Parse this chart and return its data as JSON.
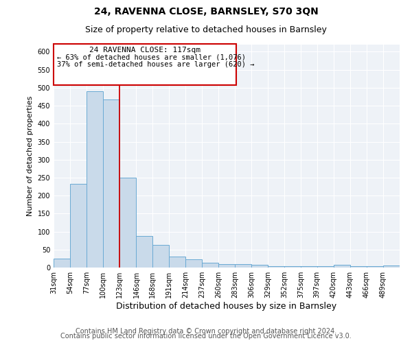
{
  "title_line1": "24, RAVENNA CLOSE, BARNSLEY, S70 3QN",
  "title_line2": "Size of property relative to detached houses in Barnsley",
  "xlabel": "Distribution of detached houses by size in Barnsley",
  "ylabel": "Number of detached properties",
  "footer_line1": "Contains HM Land Registry data © Crown copyright and database right 2024.",
  "footer_line2": "Contains public sector information licensed under the Open Government Licence v3.0.",
  "annotation_line1": "24 RAVENNA CLOSE: 117sqm",
  "annotation_line2": "← 63% of detached houses are smaller (1,076)",
  "annotation_line3": "37% of semi-detached houses are larger (620) →",
  "bar_color": "#c9daea",
  "bar_edge_color": "#6aaad4",
  "vline_color": "#cc0000",
  "background_color": "#eef2f7",
  "grid_color": "#ffffff",
  "bins": [
    31,
    54,
    77,
    100,
    123,
    146,
    168,
    191,
    214,
    237,
    260,
    283,
    306,
    329,
    352,
    375,
    397,
    420,
    443,
    466,
    489
  ],
  "counts": [
    25,
    232,
    490,
    468,
    250,
    88,
    63,
    30,
    22,
    13,
    10,
    10,
    7,
    3,
    3,
    3,
    3,
    7,
    3,
    3,
    5
  ],
  "ylim": [
    0,
    620
  ],
  "yticks": [
    0,
    50,
    100,
    150,
    200,
    250,
    300,
    350,
    400,
    450,
    500,
    550,
    600
  ],
  "title_fontsize": 10,
  "subtitle_fontsize": 9,
  "ylabel_fontsize": 8,
  "xlabel_fontsize": 9,
  "tick_fontsize": 7,
  "footer_fontsize": 7
}
